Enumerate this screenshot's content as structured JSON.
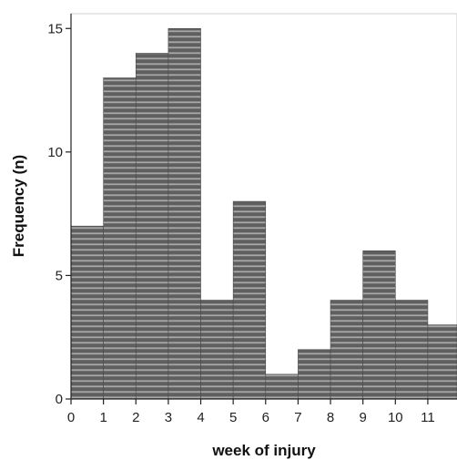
{
  "chart_data": {
    "type": "bar",
    "title": "",
    "xlabel": "week of injury",
    "ylabel": "Frequency (n)",
    "bin_edges": [
      0,
      1,
      2,
      3,
      4,
      5,
      6,
      7,
      8,
      9,
      10,
      11,
      12
    ],
    "values": [
      7,
      13,
      14,
      15,
      4,
      8,
      1,
      2,
      4,
      6,
      4,
      3
    ],
    "x_ticks": [
      "0",
      "1",
      "2",
      "3",
      "4",
      "5",
      "6",
      "7",
      "8",
      "9",
      "10",
      "11"
    ],
    "y_ticks": [
      "0",
      "5",
      "10",
      "15"
    ],
    "ylim": [
      0,
      15.6
    ],
    "xlim": [
      0,
      11.9
    ],
    "grid": false,
    "bar_color": "#5f5f5f",
    "stripe_color": "#a8a8a8"
  }
}
